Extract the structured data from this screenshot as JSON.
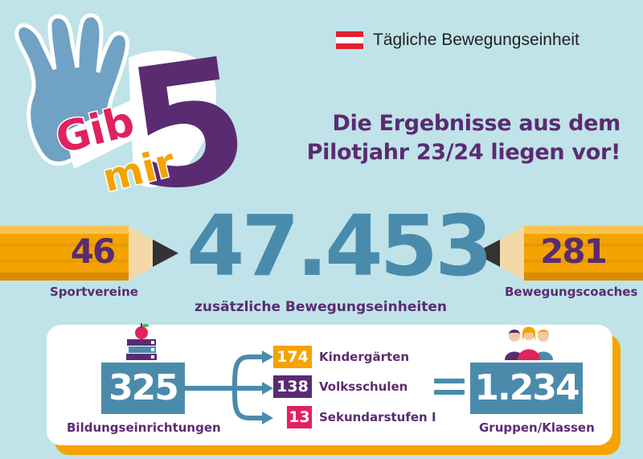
{
  "brand": {
    "text": "Tägliche Bewegungseinheit",
    "flag_colors": [
      "#e0222f",
      "#ffffff",
      "#e0222f"
    ]
  },
  "logo": {
    "line1": "Gib",
    "line2": "mir",
    "number": "5",
    "icon": "raised-hand-icon"
  },
  "headline": {
    "line1": "Die Ergebnisse aus dem",
    "line2": "Pilotjahr 23/24 liegen vor!"
  },
  "stats": {
    "sportvereine": {
      "value": "46",
      "label": "Sportvereine"
    },
    "main": {
      "value": "47.453",
      "label": "zusätzliche Bewegungseinheiten"
    },
    "coaches": {
      "value": "281",
      "label": "Bewegungscoaches"
    }
  },
  "education": {
    "total": {
      "value": "325",
      "label": "Bildungseinrichtungen",
      "icon": "books-apple-icon"
    },
    "types": [
      {
        "value": "174",
        "label": "Kindergärten",
        "color": "#f4a300"
      },
      {
        "value": "138",
        "label": "Volksschulen",
        "color": "#5b2b72"
      },
      {
        "value": "13",
        "label": "Sekundarstufen I",
        "color": "#e0225f"
      }
    ],
    "groups": {
      "value": "1.234",
      "label": "Gruppen/Klassen",
      "icon": "people-group-icon"
    }
  },
  "colors": {
    "background": "#bfe3e8",
    "purple": "#5b2b72",
    "blue": "#4a8bac",
    "orange": "#f4a300",
    "pink": "#e0225f"
  }
}
